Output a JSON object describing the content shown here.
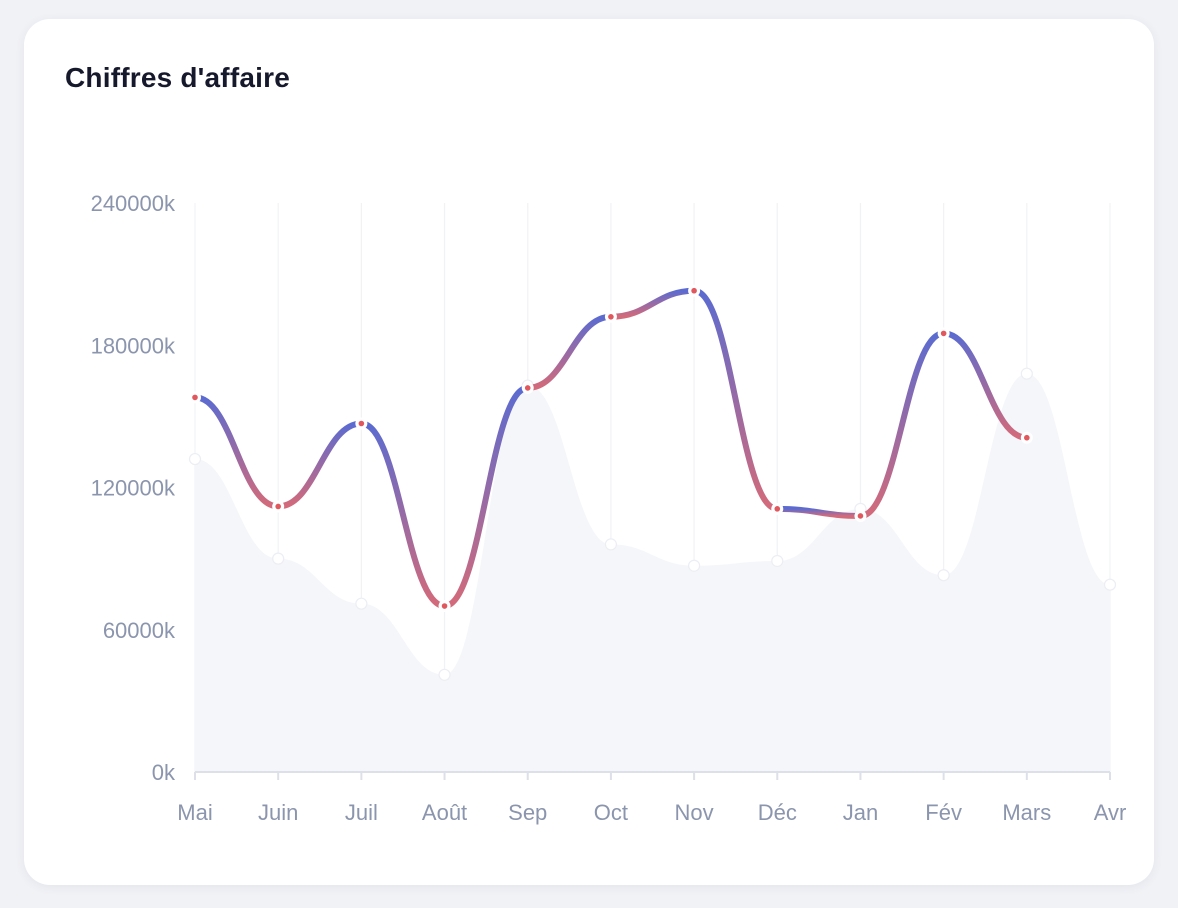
{
  "card": {
    "title": "Chiffres d'affaire"
  },
  "chart_data": {
    "type": "line",
    "title": "Chiffres d'affaire",
    "xlabel": "",
    "ylabel": "",
    "categories": [
      "Mai",
      "Juin",
      "Juil",
      "Août",
      "Sep",
      "Oct",
      "Nov",
      "Déc",
      "Jan",
      "Fév",
      "Mars",
      "Avr"
    ],
    "y_ticks": [
      "0k",
      "60000k",
      "120000k",
      "180000k",
      "240000k"
    ],
    "ylim": [
      0,
      240000
    ],
    "grid": "vertical",
    "series": [
      {
        "style": "gradient line",
        "colors": [
          "#5b6bd0",
          "#d36a7a"
        ],
        "values": [
          158000,
          112000,
          147000,
          70000,
          162000,
          192000,
          203000,
          111000,
          108000,
          185000,
          141000,
          null
        ]
      },
      {
        "style": "light area",
        "color": "#f5f6f9",
        "values": [
          132000,
          90000,
          71000,
          41000,
          163000,
          96000,
          87000,
          89000,
          111000,
          83000,
          168000,
          79000
        ]
      }
    ]
  }
}
